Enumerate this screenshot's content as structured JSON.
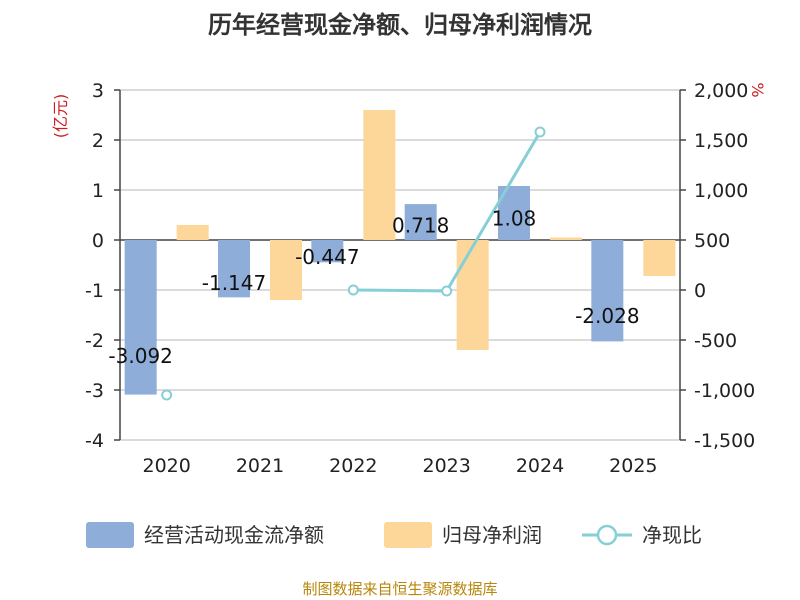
{
  "title": "历年经营现金净额、归母净利润情况",
  "source": "制图数据来自恒生聚源数据库",
  "chart_data": {
    "type": "bar",
    "categories": [
      "2020",
      "2021",
      "2022",
      "2023",
      "2024",
      "2025"
    ],
    "left_axis": {
      "unit": "(亿元)",
      "range": [
        -4,
        3
      ],
      "ticks": [
        "3",
        "2",
        "1",
        "0",
        "-1",
        "-2",
        "-3",
        "-4"
      ]
    },
    "right_axis": {
      "unit": "%",
      "range": [
        -1500,
        2000
      ],
      "ticks": [
        "2,000",
        "1,500",
        "1,000",
        "500",
        "0",
        "-500",
        "-1,000",
        "-1,500"
      ]
    },
    "series": [
      {
        "name": "经营活动现金流净额",
        "type": "bar",
        "axis": "left",
        "color": "#8fadd9",
        "values": [
          -3.092,
          -1.147,
          -0.447,
          0.718,
          1.08,
          -2.028
        ],
        "labels": [
          "-3.092",
          "-1.147",
          "-0.447",
          "0.718",
          "1.08",
          "-2.028"
        ]
      },
      {
        "name": "归母净利润",
        "type": "bar",
        "axis": "left",
        "color": "#fdd699",
        "values": [
          0.3,
          -1.2,
          2.6,
          -2.2,
          0.05,
          -0.72
        ]
      },
      {
        "name": "净现比",
        "type": "line",
        "axis": "right",
        "color": "#86cfd6",
        "values": [
          -1050,
          null,
          0,
          -10,
          1580,
          null
        ]
      }
    ],
    "grid": true,
    "legend": "bottom"
  }
}
